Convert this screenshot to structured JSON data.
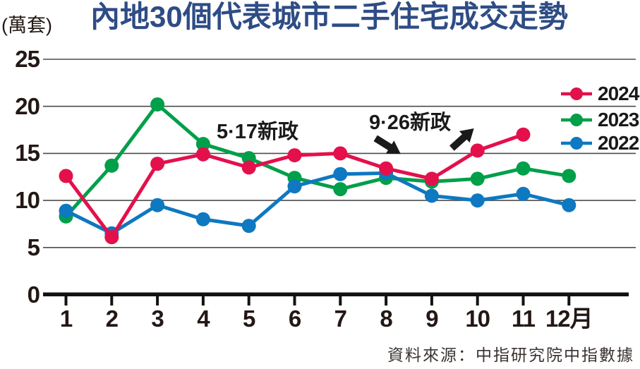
{
  "chart_data": {
    "type": "line",
    "title": "內地30個代表城市二手住宅成交走勢",
    "unit_label": "(萬套)",
    "xlabel": "",
    "ylabel": "萬套",
    "x_labels": [
      "1",
      "2",
      "3",
      "4",
      "5",
      "6",
      "7",
      "8",
      "9",
      "10",
      "11",
      "12月"
    ],
    "yticks": [
      0,
      5,
      10,
      15,
      20,
      25
    ],
    "ylim": [
      0,
      25
    ],
    "grid": true,
    "legend_position": "top-right",
    "series": [
      {
        "name": "2024",
        "color": "#e3104c",
        "values": [
          12.6,
          6.1,
          13.9,
          14.9,
          13.5,
          14.8,
          15.0,
          13.4,
          12.3,
          15.3,
          17.0,
          null
        ]
      },
      {
        "name": "2023",
        "color": "#009f49",
        "values": [
          8.3,
          13.7,
          20.2,
          16.0,
          14.5,
          12.4,
          11.2,
          12.4,
          12.0,
          12.3,
          13.4,
          12.6
        ]
      },
      {
        "name": "2022",
        "color": "#0e78c0",
        "values": [
          8.9,
          6.5,
          9.5,
          8.0,
          7.3,
          11.5,
          12.8,
          12.9,
          10.5,
          10.0,
          10.7,
          9.5
        ]
      }
    ],
    "draw_order": [
      1,
      2,
      0
    ],
    "annotations": [
      {
        "text": "5·17新政"
      },
      {
        "text": "9·26新政"
      }
    ]
  },
  "source": {
    "text": "資料來源：中指研究院中指數據"
  },
  "colors": {
    "title": "#2e4c85",
    "text": "#231815",
    "grid": "#4c4c4c",
    "axis": "#121212",
    "annotation_arrow": "#1a1a1a"
  }
}
